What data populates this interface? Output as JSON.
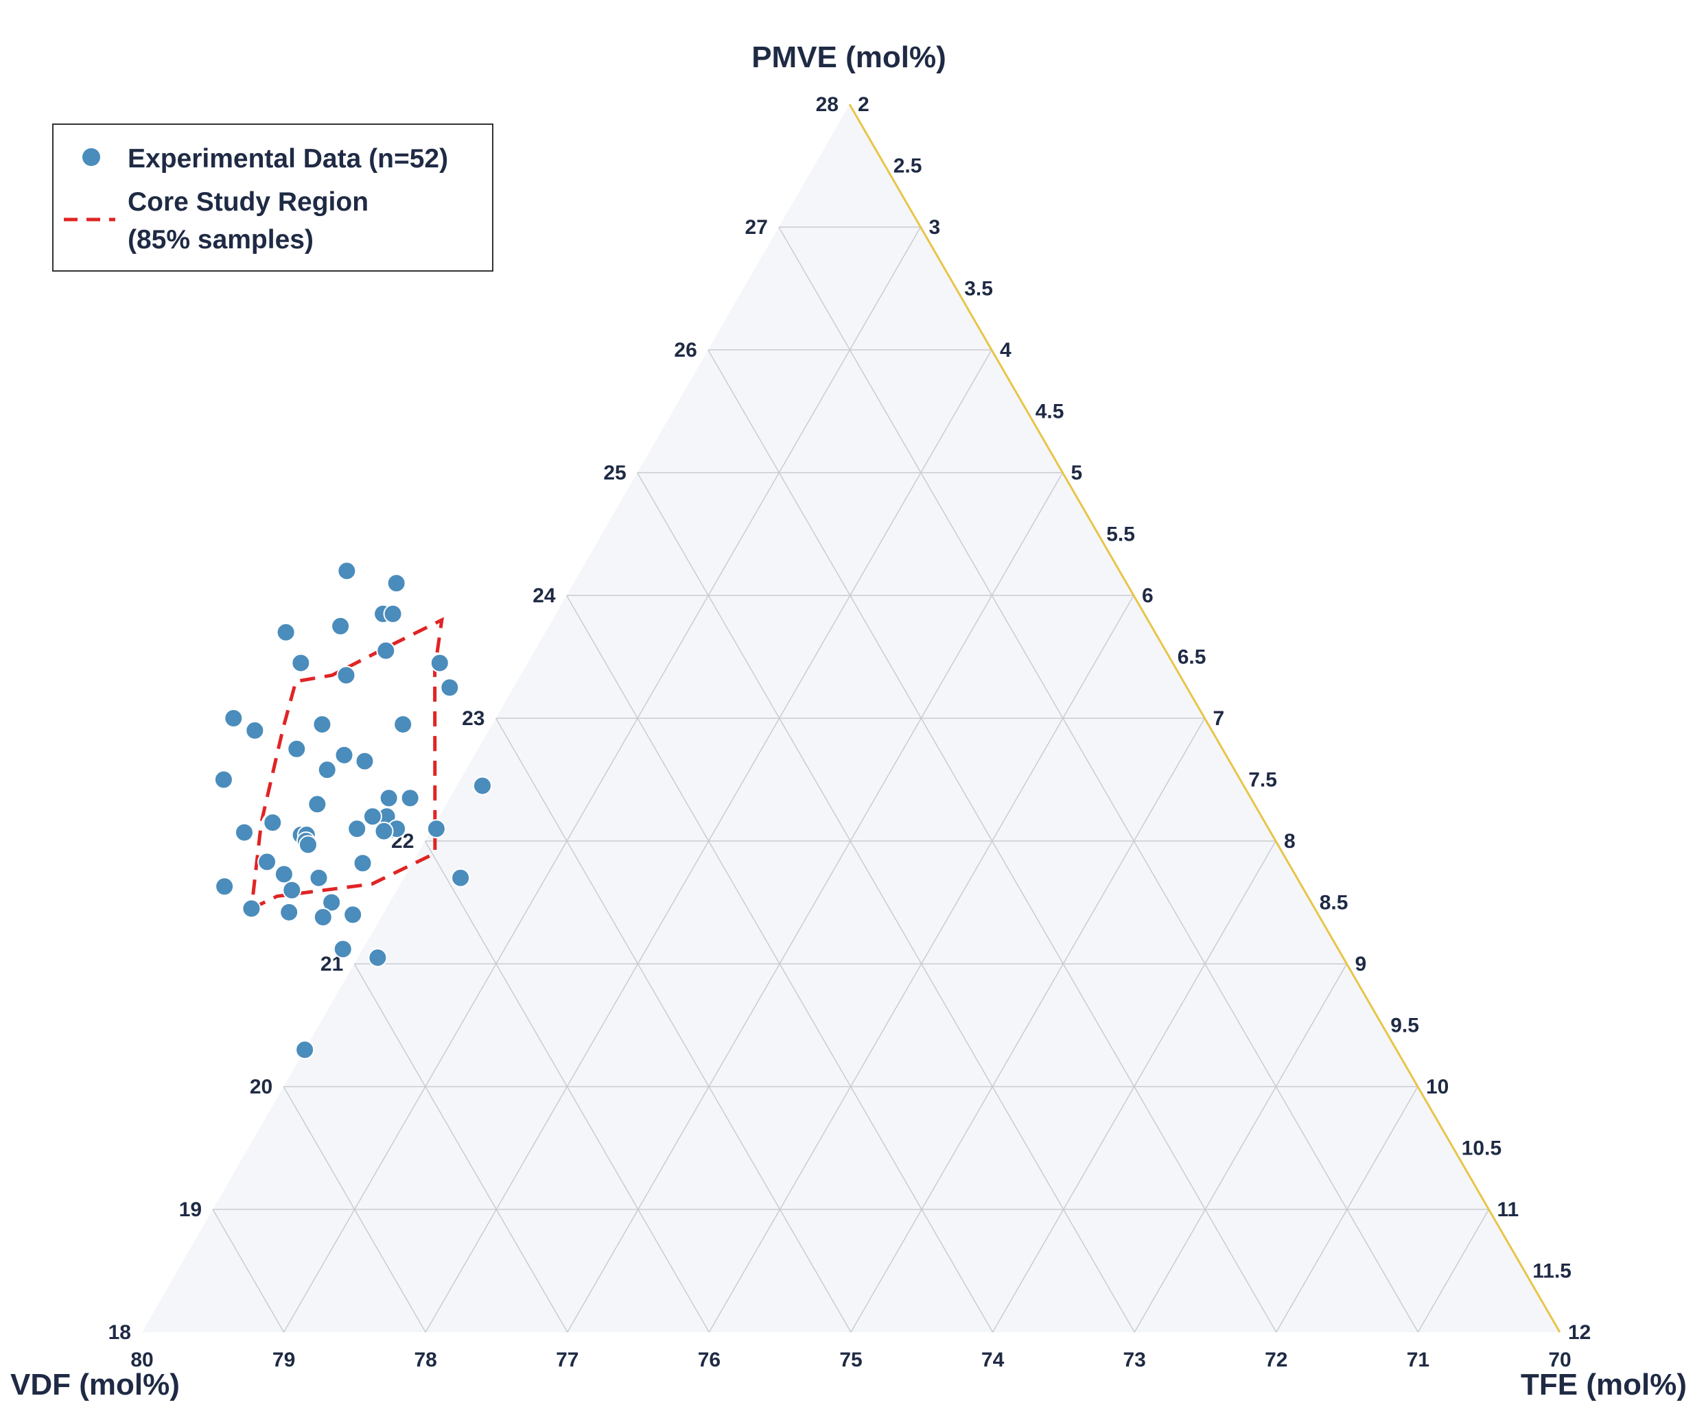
{
  "chart_data": {
    "type": "scatter",
    "subtype": "ternary",
    "title": "",
    "axes": {
      "pmve": {
        "label": "PMVE (mol%)",
        "range": [
          18,
          28
        ],
        "ticks": [
          18,
          19,
          20,
          21,
          22,
          23,
          24,
          25,
          26,
          27,
          28
        ]
      },
      "vdf": {
        "label": "VDF (mol%)",
        "range": [
          70,
          80
        ],
        "ticks": [
          80,
          79,
          78,
          77,
          76,
          75,
          74,
          73,
          72,
          71,
          70
        ]
      },
      "tfe": {
        "label": "TFE (mol%)",
        "range": [
          2,
          12
        ],
        "ticks": [
          2,
          2.5,
          3,
          3.5,
          4,
          4.5,
          5,
          5.5,
          6,
          6.5,
          7,
          7.5,
          8,
          8.5,
          9,
          9.5,
          10,
          10.5,
          11,
          11.5,
          12
        ]
      }
    },
    "grid": true,
    "legend": {
      "position": "top-left",
      "entries": [
        {
          "label": "Experimental Data (n=52)",
          "marker": "circle"
        },
        {
          "label_line1": "Core Study Region",
          "label_line2": "(85% samples)",
          "marker": "dashed-line"
        }
      ]
    },
    "series": [
      {
        "name": "Experimental Data (n=52)",
        "note": "points given as [VDF, PMVE] mol%; TFE = 100 - VDF - PMVE",
        "points": [
          [
            75.45,
            24.2
          ],
          [
            75.15,
            24.1
          ],
          [
            75.37,
            23.85
          ],
          [
            75.3,
            23.85
          ],
          [
            75.72,
            23.75
          ],
          [
            75.5,
            23.55
          ],
          [
            76.13,
            23.7
          ],
          [
            75.17,
            23.45
          ],
          [
            76.15,
            23.45
          ],
          [
            75.88,
            23.35
          ],
          [
            75.2,
            23.25
          ],
          [
            76.85,
            23.0
          ],
          [
            75.68,
            22.95
          ],
          [
            76.25,
            22.95
          ],
          [
            76.75,
            22.9
          ],
          [
            76.53,
            22.75
          ],
          [
            76.1,
            22.65
          ],
          [
            76.22,
            22.7
          ],
          [
            76.4,
            22.58
          ],
          [
            77.17,
            22.5
          ],
          [
            75.37,
            22.45
          ],
          [
            76.08,
            22.35
          ],
          [
            75.93,
            22.35
          ],
          [
            76.61,
            22.3
          ],
          [
            76.17,
            22.2
          ],
          [
            76.27,
            22.2
          ],
          [
            77.01,
            22.15
          ],
          [
            77.0,
            22.15
          ],
          [
            76.43,
            22.1
          ],
          [
            76.15,
            22.1
          ],
          [
            76.25,
            22.08
          ],
          [
            75.87,
            22.1
          ],
          [
            77.24,
            22.07
          ],
          [
            76.85,
            22.05
          ],
          [
            76.81,
            22.05
          ],
          [
            76.84,
            22.0
          ],
          [
            76.84,
            21.97
          ],
          [
            76.53,
            21.82
          ],
          [
            77.2,
            21.83
          ],
          [
            77.13,
            21.73
          ],
          [
            76.9,
            21.7
          ],
          [
            75.9,
            21.7
          ],
          [
            77.14,
            21.6
          ],
          [
            77.6,
            21.63
          ],
          [
            76.91,
            21.5
          ],
          [
            77.5,
            21.45
          ],
          [
            77.25,
            21.42
          ],
          [
            77.03,
            21.38
          ],
          [
            76.81,
            21.4
          ],
          [
            77.02,
            21.12
          ],
          [
            76.81,
            21.05
          ],
          [
            77.7,
            20.3
          ]
        ]
      },
      {
        "name": "Core Study Region (85% samples)",
        "style": "dashed",
        "color": "#e02424",
        "polygon": [
          [
            77.5,
            21.45
          ],
          [
            77.27,
            21.55
          ],
          [
            76.55,
            21.65
          ],
          [
            75.98,
            21.9
          ],
          [
            75.23,
            23.4
          ],
          [
            74.98,
            23.8
          ],
          [
            75.43,
            23.6
          ],
          [
            75.98,
            23.35
          ],
          [
            76.26,
            23.3
          ],
          [
            76.54,
            22.92
          ],
          [
            77.08,
            22.15
          ]
        ]
      }
    ],
    "colors": {
      "points": "#4a8cbc",
      "point_stroke": "#ffffff",
      "region": "#e02424",
      "grid": "#c9ccd3",
      "plot_bg": "#f4f6f9",
      "right_edge": "#e8c547",
      "text": "#1f2a44"
    }
  }
}
